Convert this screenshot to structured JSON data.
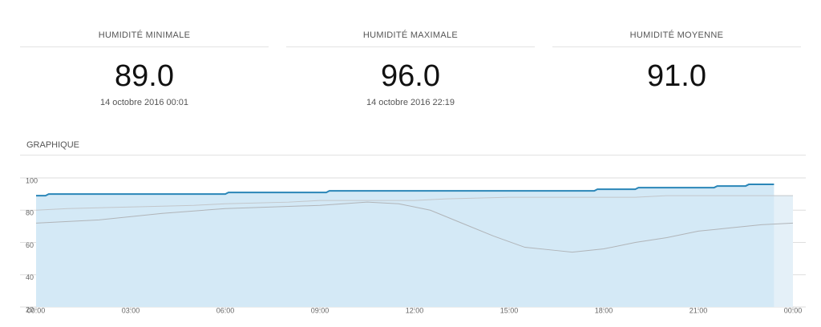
{
  "stats": [
    {
      "label": "HUMIDITÉ MINIMALE",
      "value": "89.0",
      "date": "14 octobre 2016 00:01"
    },
    {
      "label": "HUMIDITÉ MAXIMALE",
      "value": "96.0",
      "date": "14 octobre 2016 22:19"
    },
    {
      "label": "HUMIDITÉ MOYENNE",
      "value": "91.0"
    }
  ],
  "chart_data": {
    "type": "line",
    "title": "GRAPHIQUE",
    "xlim": [
      0,
      24
    ],
    "xticks": [
      {
        "value": 0,
        "label": "00:00"
      },
      {
        "value": 3,
        "label": "03:00"
      },
      {
        "value": 6,
        "label": "06:00"
      },
      {
        "value": 9,
        "label": "09:00"
      },
      {
        "value": 12,
        "label": "12:00"
      },
      {
        "value": 15,
        "label": "15:00"
      },
      {
        "value": 18,
        "label": "18:00"
      },
      {
        "value": 21,
        "label": "21:00"
      },
      {
        "value": 24,
        "label": "00:00"
      }
    ],
    "ylim": [
      20,
      100
    ],
    "yticks": [
      20,
      40,
      60,
      80,
      100
    ],
    "grid": true,
    "series": [
      {
        "color": "#c2c6ca",
        "fill": "#e4f0f8",
        "x": [
          0,
          1,
          3,
          5,
          6,
          8,
          9,
          12,
          13,
          15,
          19,
          20,
          24
        ],
        "values": [
          80,
          81,
          82,
          83,
          84,
          85,
          86,
          86,
          87,
          88,
          88,
          89,
          89
        ]
      },
      {
        "color": "#b0b4b8",
        "x": [
          0,
          2,
          4,
          6,
          9,
          10.5,
          11.5,
          12.5,
          13.5,
          14.5,
          15.5,
          16.5,
          17,
          18,
          19,
          20,
          21,
          22,
          23,
          24
        ],
        "values": [
          72,
          74,
          78,
          81,
          83,
          85,
          84,
          80,
          72,
          64,
          57,
          55,
          54,
          56,
          60,
          63,
          67,
          69,
          71,
          72
        ]
      },
      {
        "color": "#2a86b8",
        "fill": "#d4e9f6",
        "x": [
          0,
          0.3,
          0.4,
          6,
          6.1,
          9.2,
          9.3,
          17.7,
          17.8,
          19,
          19.1,
          21.5,
          21.6,
          22.5,
          22.6,
          23.4
        ],
        "values": [
          89,
          89,
          90,
          90,
          91,
          91,
          92,
          92,
          93,
          93,
          94,
          94,
          95,
          95,
          96,
          96
        ]
      }
    ]
  }
}
